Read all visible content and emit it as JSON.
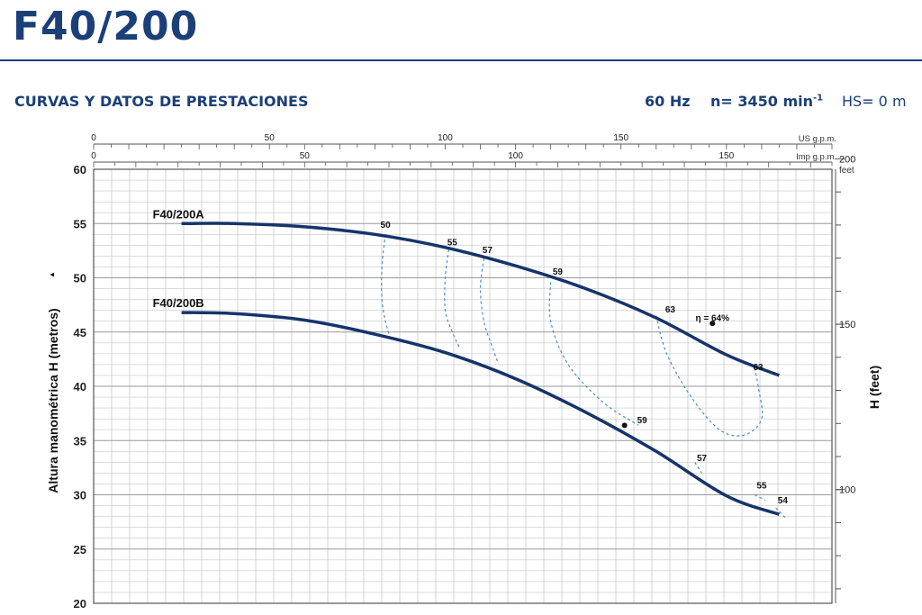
{
  "header": {
    "title": "F40/200",
    "subtitle": "CURVAS Y DATOS DE PRESTACIONES",
    "frequency": "60 Hz",
    "speed": "n= 3450 min",
    "speed_sup": "-1",
    "suction": "HS= 0 m"
  },
  "colors": {
    "brand": "#1b3f78",
    "curve": "#15346b",
    "efficiency": "#4a90c8",
    "grid": "#c8c8c8"
  },
  "chart_data": {
    "type": "line",
    "ylabel": "Altura manométrica H (metros)",
    "ylabel_arrow": "▲",
    "ylim": [
      20,
      60
    ],
    "y_ticks": [
      20,
      25,
      30,
      35,
      40,
      45,
      50,
      55,
      60
    ],
    "right_axis": {
      "unit_label": "feet",
      "label": "H (feet)",
      "ticks": [
        100,
        150,
        200
      ]
    },
    "top_axis_us": {
      "unit_label": "US g.p.m.",
      "ticks": [
        0,
        50,
        100,
        150
      ],
      "xlim": [
        0,
        210
      ]
    },
    "top_axis_imp": {
      "unit_label": "Imp g.p.m.",
      "ticks": [
        0,
        50,
        100,
        150
      ],
      "xlim": [
        0,
        175
      ]
    },
    "series": [
      {
        "name": "F40/200A",
        "x": [
          25,
          40,
          60,
          80,
          100,
          120,
          140,
          160,
          180,
          195
        ],
        "y": [
          55.0,
          55.0,
          54.7,
          54.0,
          52.8,
          51.1,
          49.0,
          46.3,
          42.9,
          41.0
        ]
      },
      {
        "name": "F40/200B",
        "x": [
          25,
          40,
          60,
          80,
          100,
          120,
          140,
          160,
          180,
          195
        ],
        "y": [
          46.8,
          46.7,
          46.1,
          44.8,
          43.1,
          40.7,
          37.6,
          34.0,
          29.9,
          28.2
        ]
      }
    ],
    "efficiency_labels": [
      {
        "label": "50",
        "x": 83,
        "y": 54.6
      },
      {
        "label": "55",
        "x": 102,
        "y": 53.0
      },
      {
        "label": "57",
        "x": 112,
        "y": 52.3
      },
      {
        "label": "59",
        "x": 132,
        "y": 50.3
      },
      {
        "label": "63",
        "x": 164,
        "y": 46.8
      },
      {
        "label": "η = 64%",
        "x": 176,
        "y": 46.0
      },
      {
        "label": "63",
        "x": 189,
        "y": 41.5
      },
      {
        "label": "59",
        "x": 156,
        "y": 36.6
      },
      {
        "label": "57",
        "x": 173,
        "y": 33.1
      },
      {
        "label": "55",
        "x": 190,
        "y": 30.6
      },
      {
        "label": "54",
        "x": 196,
        "y": 29.2
      }
    ],
    "efficiency_curves": [
      {
        "label": "50",
        "x": [
          83,
          82,
          82,
          83,
          84
        ],
        "y": [
          54.0,
          51.0,
          48.0,
          46.0,
          44.8
        ]
      },
      {
        "label": "55",
        "x": [
          101,
          100,
          100,
          102,
          104
        ],
        "y": [
          52.6,
          50.0,
          47.0,
          45.0,
          43.6
        ]
      },
      {
        "label": "57",
        "x": [
          111,
          110,
          111,
          113,
          115
        ],
        "y": [
          51.8,
          49.0,
          46.0,
          44.0,
          42.2
        ]
      },
      {
        "label": "59",
        "x": [
          130,
          130,
          135,
          145,
          155
        ],
        "y": [
          49.6,
          46.0,
          42.0,
          38.5,
          36.4
        ]
      },
      {
        "label": "63",
        "x": [
          160,
          163,
          170,
          178,
          185,
          190,
          189,
          188
        ],
        "y": [
          46.5,
          43.0,
          39.0,
          36.0,
          35.5,
          37.0,
          40.0,
          41.7
        ]
      },
      {
        "label": "57",
        "x": [
          171,
          173
        ],
        "y": [
          33.0,
          32.0
        ]
      },
      {
        "label": "55",
        "x": [
          188,
          191
        ],
        "y": [
          30.0,
          29.5
        ]
      },
      {
        "label": "54",
        "x": [
          194,
          197
        ],
        "y": [
          28.8,
          27.8
        ]
      }
    ]
  }
}
